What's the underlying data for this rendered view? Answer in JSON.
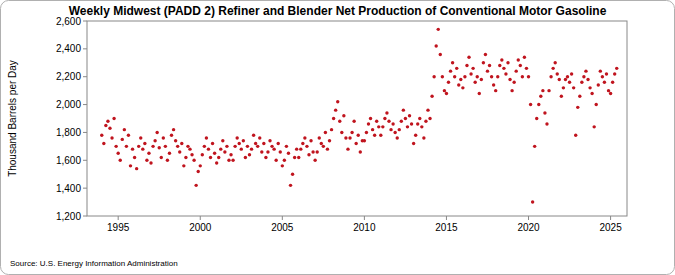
{
  "chart_data": {
    "type": "scatter",
    "title": "Weekly Midwest (PADD 2) Refiner and Blender Net Production of Conventional Motor Gasoline",
    "y_label": "Thousand Barrels per Day",
    "source": "Source: U.S. Energy Information Administration",
    "color": "#c0141e",
    "marker": "circle",
    "grid": false,
    "xlim": [
      1993.1,
      2026.0
    ],
    "xticks": [
      1995,
      2000,
      2005,
      2010,
      2015,
      2020,
      2025
    ],
    "ylim": [
      1200,
      2600
    ],
    "yticks": [
      {
        "value": 1200,
        "label": "1,200"
      },
      {
        "value": 1400,
        "label": "1,400"
      },
      {
        "value": 1600,
        "label": "1,600"
      },
      {
        "value": 1800,
        "label": "1,800"
      },
      {
        "value": 2000,
        "label": "2,000"
      },
      {
        "value": 2200,
        "label": "2,200"
      },
      {
        "value": 2400,
        "label": "2,400"
      },
      {
        "value": 2600,
        "label": "2,600"
      }
    ],
    "x": [
      1994,
      1994.125,
      1994.25,
      1994.375,
      1994.5,
      1994.625,
      1994.75,
      1994.875,
      1995,
      1995.125,
      1995.25,
      1995.375,
      1995.5,
      1995.625,
      1995.75,
      1995.875,
      1996,
      1996.125,
      1996.25,
      1996.375,
      1996.5,
      1996.625,
      1996.75,
      1996.875,
      1997,
      1997.125,
      1997.25,
      1997.375,
      1997.5,
      1997.625,
      1997.75,
      1997.875,
      1998,
      1998.125,
      1998.25,
      1998.375,
      1998.5,
      1998.625,
      1998.75,
      1998.875,
      1999,
      1999.125,
      1999.25,
      1999.375,
      1999.5,
      1999.625,
      1999.75,
      1999.875,
      2000,
      2000.125,
      2000.25,
      2000.375,
      2000.5,
      2000.625,
      2000.75,
      2000.875,
      2001,
      2001.125,
      2001.25,
      2001.375,
      2001.5,
      2001.625,
      2001.75,
      2001.875,
      2002,
      2002.125,
      2002.25,
      2002.375,
      2002.5,
      2002.625,
      2002.75,
      2002.875,
      2003,
      2003.125,
      2003.25,
      2003.375,
      2003.5,
      2003.625,
      2003.75,
      2003.875,
      2004,
      2004.125,
      2004.25,
      2004.375,
      2004.5,
      2004.625,
      2004.75,
      2004.875,
      2005,
      2005.125,
      2005.25,
      2005.375,
      2005.5,
      2005.625,
      2005.75,
      2005.875,
      2006,
      2006.125,
      2006.25,
      2006.375,
      2006.5,
      2006.625,
      2006.75,
      2006.875,
      2007,
      2007.125,
      2007.25,
      2007.375,
      2007.5,
      2007.625,
      2007.75,
      2007.875,
      2008,
      2008.125,
      2008.25,
      2008.375,
      2008.5,
      2008.625,
      2008.75,
      2008.875,
      2009,
      2009.125,
      2009.25,
      2009.375,
      2009.5,
      2009.625,
      2009.75,
      2009.875,
      2010,
      2010.125,
      2010.25,
      2010.375,
      2010.5,
      2010.625,
      2010.75,
      2010.875,
      2011,
      2011.125,
      2011.25,
      2011.375,
      2011.5,
      2011.625,
      2011.75,
      2011.875,
      2012,
      2012.125,
      2012.25,
      2012.375,
      2012.5,
      2012.625,
      2012.75,
      2012.875,
      2013,
      2013.125,
      2013.25,
      2013.375,
      2013.5,
      2013.625,
      2013.75,
      2013.875,
      2014,
      2014.125,
      2014.25,
      2014.375,
      2014.5,
      2014.625,
      2014.75,
      2014.875,
      2015,
      2015.125,
      2015.25,
      2015.375,
      2015.5,
      2015.625,
      2015.75,
      2015.875,
      2016,
      2016.125,
      2016.25,
      2016.375,
      2016.5,
      2016.625,
      2016.75,
      2016.875,
      2017,
      2017.125,
      2017.25,
      2017.375,
      2017.5,
      2017.625,
      2017.75,
      2017.875,
      2018,
      2018.125,
      2018.25,
      2018.375,
      2018.5,
      2018.625,
      2018.75,
      2018.875,
      2019,
      2019.125,
      2019.25,
      2019.375,
      2019.5,
      2019.625,
      2019.75,
      2019.875,
      2020,
      2020.125,
      2020.25,
      2020.375,
      2020.5,
      2020.625,
      2020.75,
      2020.875,
      2021,
      2021.125,
      2021.25,
      2021.375,
      2021.5,
      2021.625,
      2021.75,
      2021.875,
      2022,
      2022.125,
      2022.25,
      2022.375,
      2022.5,
      2022.625,
      2022.75,
      2022.875,
      2023,
      2023.125,
      2023.25,
      2023.375,
      2023.5,
      2023.625,
      2023.75,
      2023.875,
      2024,
      2024.125,
      2024.25,
      2024.375,
      2024.5,
      2024.625,
      2024.75,
      2024.875,
      2025,
      2025.125,
      2025.25,
      2025.375
    ],
    "values": [
      1780,
      1720,
      1850,
      1880,
      1830,
      1760,
      1900,
      1700,
      1650,
      1600,
      1750,
      1820,
      1700,
      1780,
      1560,
      1680,
      1620,
      1540,
      1700,
      1760,
      1680,
      1720,
      1600,
      1650,
      1580,
      1700,
      1740,
      1800,
      1690,
      1620,
      1760,
      1700,
      1600,
      1650,
      1780,
      1820,
      1740,
      1700,
      1660,
      1720,
      1560,
      1620,
      1700,
      1680,
      1640,
      1600,
      1420,
      1520,
      1560,
      1640,
      1700,
      1760,
      1680,
      1620,
      1720,
      1650,
      1580,
      1620,
      1680,
      1740,
      1660,
      1700,
      1600,
      1640,
      1600,
      1700,
      1760,
      1720,
      1680,
      1740,
      1620,
      1700,
      1640,
      1680,
      1780,
      1720,
      1700,
      1760,
      1660,
      1720,
      1620,
      1660,
      1740,
      1700,
      1680,
      1600,
      1720,
      1660,
      1560,
      1600,
      1700,
      1650,
      1420,
      1500,
      1620,
      1680,
      1620,
      1680,
      1720,
      1760,
      1700,
      1640,
      1740,
      1660,
      1600,
      1660,
      1760,
      1720,
      1700,
      1800,
      1680,
      1740,
      1820,
      1900,
      1960,
      2020,
      1880,
      1800,
      1920,
      1760,
      1680,
      1760,
      1800,
      1880,
      1720,
      1780,
      1660,
      1740,
      1740,
      1800,
      1860,
      1900,
      1820,
      1780,
      1880,
      1840,
      1780,
      1840,
      1900,
      1940,
      1880,
      1820,
      1860,
      1800,
      1760,
      1820,
      1880,
      1960,
      1900,
      1840,
      1920,
      1860,
      1720,
      1780,
      1860,
      1900,
      1840,
      1760,
      1880,
      1960,
      1900,
      2060,
      2200,
      2420,
      2540,
      2360,
      2200,
      2100,
      2080,
      2160,
      2240,
      2300,
      2200,
      2260,
      2140,
      2180,
      2120,
      2200,
      2280,
      2340,
      2220,
      2260,
      2160,
      2200,
      2080,
      2180,
      2300,
      2360,
      2240,
      2280,
      2200,
      2140,
      2100,
      2200,
      2280,
      2320,
      2260,
      2220,
      2300,
      2180,
      2100,
      2160,
      2240,
      2320,
      2280,
      2200,
      2340,
      2260,
      2200,
      2000,
      1300,
      1700,
      1900,
      2000,
      2060,
      2100,
      1940,
      1860,
      2100,
      2200,
      2260,
      2300,
      2220,
      2180,
      2060,
      2120,
      2180,
      2200,
      2160,
      2220,
      2120,
      1780,
      1980,
      2060,
      2160,
      2200,
      2240,
      2180,
      2120,
      2080,
      1840,
      2000,
      2140,
      2240,
      2200,
      2160,
      2220,
      2100,
      2080,
      2160,
      2220,
      2260
    ]
  }
}
